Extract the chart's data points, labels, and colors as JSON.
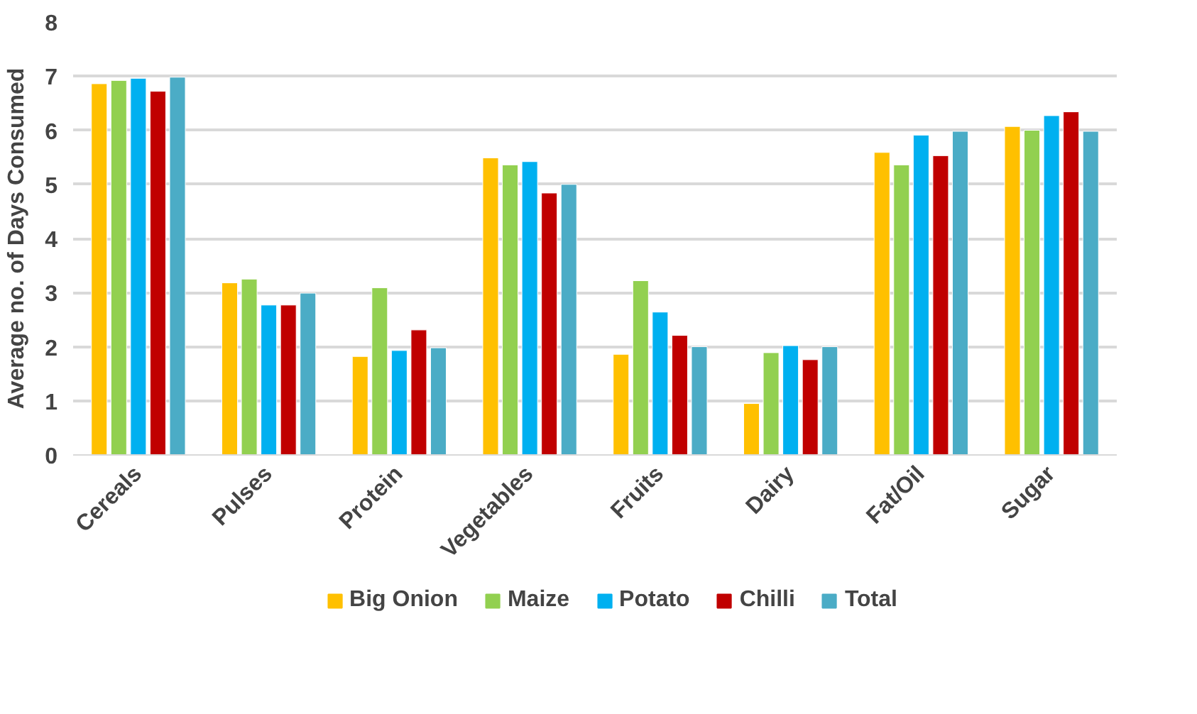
{
  "chart_data": {
    "type": "bar",
    "ylabel": "Average no. of Days Consumed",
    "categories": [
      "Cereals",
      "Pulses",
      "Protein",
      "Vegetables",
      "Fruits",
      "Dairy",
      "Fat/Oil",
      "Sugar"
    ],
    "series": [
      {
        "name": "Big Onion",
        "color": "#ffc000",
        "values": [
          6.86,
          3.18,
          1.82,
          5.49,
          1.86,
          0.95,
          5.59,
          6.07
        ]
      },
      {
        "name": "Maize",
        "color": "#92d050",
        "values": [
          6.92,
          3.25,
          3.09,
          5.36,
          3.22,
          1.89,
          5.36,
          6.0
        ]
      },
      {
        "name": "Potato",
        "color": "#00b0f0",
        "values": [
          6.96,
          2.77,
          1.93,
          5.42,
          2.64,
          2.02,
          5.91,
          6.27
        ]
      },
      {
        "name": "Chilli",
        "color": "#c00000",
        "values": [
          6.72,
          2.77,
          2.31,
          4.84,
          2.21,
          1.76,
          5.53,
          6.34
        ]
      },
      {
        "name": "Total",
        "color": "#4bacc6",
        "values": [
          6.98,
          2.99,
          1.98,
          5.0,
          2.0,
          2.0,
          5.98,
          5.98
        ]
      }
    ],
    "ylim": [
      0,
      8
    ],
    "yticks": [
      0,
      1,
      2,
      3,
      4,
      5,
      6,
      7,
      8
    ],
    "grid": "y",
    "legend": "bottom"
  }
}
